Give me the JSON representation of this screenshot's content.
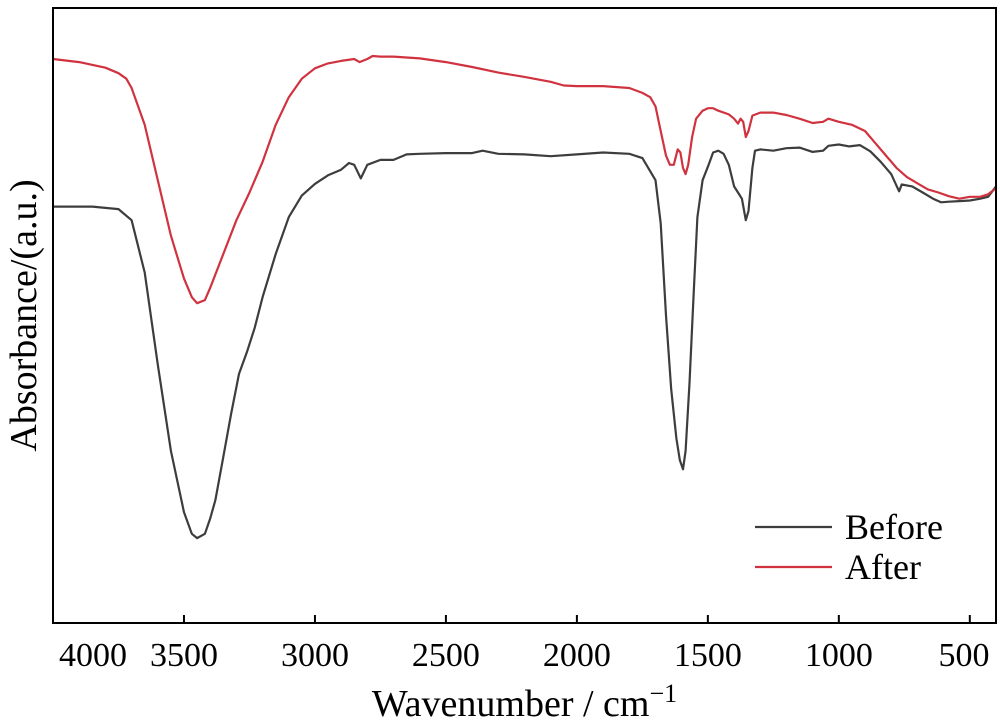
{
  "chart_data": {
    "type": "line",
    "title": "",
    "xlabel": "Wavenumber / cm",
    "xlabel_superscript": "−1",
    "ylabel": "Absorbance/(a.u.)",
    "xlim": [
      4000,
      400
    ],
    "x_reversed": true,
    "x_ticks": [
      4000,
      3500,
      3000,
      2500,
      2000,
      1500,
      1000,
      500
    ],
    "x_tick_labels": [
      "4000",
      "3500",
      "3000",
      "2500",
      "2000",
      "1500",
      "1000",
      "500"
    ],
    "ylim": [
      0,
      1
    ],
    "y_ticks_shown": false,
    "grid": false,
    "legend": {
      "placement": "bottom-right"
    },
    "series": [
      {
        "name": "Before",
        "color": "#3d3d3d",
        "points": [
          [
            4000,
            0.677
          ],
          [
            3850,
            0.677
          ],
          [
            3750,
            0.673
          ],
          [
            3700,
            0.655
          ],
          [
            3650,
            0.57
          ],
          [
            3600,
            0.42
          ],
          [
            3550,
            0.28
          ],
          [
            3500,
            0.18
          ],
          [
            3470,
            0.145
          ],
          [
            3450,
            0.138
          ],
          [
            3420,
            0.145
          ],
          [
            3400,
            0.17
          ],
          [
            3380,
            0.2
          ],
          [
            3350,
            0.27
          ],
          [
            3320,
            0.34
          ],
          [
            3290,
            0.405
          ],
          [
            3260,
            0.44
          ],
          [
            3230,
            0.48
          ],
          [
            3200,
            0.53
          ],
          [
            3150,
            0.6
          ],
          [
            3100,
            0.66
          ],
          [
            3050,
            0.695
          ],
          [
            3000,
            0.714
          ],
          [
            2950,
            0.728
          ],
          [
            2900,
            0.737
          ],
          [
            2870,
            0.748
          ],
          [
            2850,
            0.745
          ],
          [
            2825,
            0.723
          ],
          [
            2800,
            0.745
          ],
          [
            2750,
            0.753
          ],
          [
            2700,
            0.753
          ],
          [
            2650,
            0.762
          ],
          [
            2600,
            0.763
          ],
          [
            2500,
            0.764
          ],
          [
            2400,
            0.764
          ],
          [
            2360,
            0.768
          ],
          [
            2300,
            0.763
          ],
          [
            2200,
            0.762
          ],
          [
            2100,
            0.759
          ],
          [
            2000,
            0.762
          ],
          [
            1900,
            0.765
          ],
          [
            1800,
            0.763
          ],
          [
            1750,
            0.756
          ],
          [
            1700,
            0.72
          ],
          [
            1680,
            0.65
          ],
          [
            1660,
            0.5
          ],
          [
            1640,
            0.38
          ],
          [
            1620,
            0.3
          ],
          [
            1607,
            0.265
          ],
          [
            1595,
            0.25
          ],
          [
            1585,
            0.28
          ],
          [
            1570,
            0.39
          ],
          [
            1555,
            0.53
          ],
          [
            1540,
            0.66
          ],
          [
            1520,
            0.72
          ],
          [
            1500,
            0.742
          ],
          [
            1480,
            0.765
          ],
          [
            1460,
            0.768
          ],
          [
            1440,
            0.763
          ],
          [
            1420,
            0.745
          ],
          [
            1400,
            0.71
          ],
          [
            1385,
            0.7
          ],
          [
            1370,
            0.69
          ],
          [
            1355,
            0.655
          ],
          [
            1345,
            0.67
          ],
          [
            1330,
            0.74
          ],
          [
            1320,
            0.768
          ],
          [
            1300,
            0.77
          ],
          [
            1250,
            0.768
          ],
          [
            1200,
            0.772
          ],
          [
            1150,
            0.773
          ],
          [
            1100,
            0.766
          ],
          [
            1060,
            0.768
          ],
          [
            1040,
            0.776
          ],
          [
            1000,
            0.778
          ],
          [
            960,
            0.775
          ],
          [
            920,
            0.777
          ],
          [
            880,
            0.767
          ],
          [
            840,
            0.75
          ],
          [
            800,
            0.73
          ],
          [
            780,
            0.711
          ],
          [
            770,
            0.702
          ],
          [
            760,
            0.713
          ],
          [
            720,
            0.71
          ],
          [
            680,
            0.7
          ],
          [
            640,
            0.69
          ],
          [
            610,
            0.684
          ],
          [
            580,
            0.685
          ],
          [
            540,
            0.686
          ],
          [
            500,
            0.687
          ],
          [
            460,
            0.69
          ],
          [
            430,
            0.693
          ],
          [
            400,
            0.71
          ]
        ]
      },
      {
        "name": "After",
        "color": "#d0333f",
        "points": [
          [
            4000,
            0.917
          ],
          [
            3900,
            0.912
          ],
          [
            3800,
            0.903
          ],
          [
            3750,
            0.894
          ],
          [
            3720,
            0.885
          ],
          [
            3700,
            0.87
          ],
          [
            3650,
            0.81
          ],
          [
            3600,
            0.72
          ],
          [
            3550,
            0.63
          ],
          [
            3500,
            0.56
          ],
          [
            3470,
            0.53
          ],
          [
            3450,
            0.52
          ],
          [
            3420,
            0.525
          ],
          [
            3400,
            0.545
          ],
          [
            3350,
            0.6
          ],
          [
            3300,
            0.655
          ],
          [
            3250,
            0.7
          ],
          [
            3200,
            0.75
          ],
          [
            3150,
            0.81
          ],
          [
            3100,
            0.855
          ],
          [
            3050,
            0.885
          ],
          [
            3000,
            0.902
          ],
          [
            2950,
            0.91
          ],
          [
            2900,
            0.914
          ],
          [
            2850,
            0.917
          ],
          [
            2830,
            0.912
          ],
          [
            2800,
            0.917
          ],
          [
            2780,
            0.922
          ],
          [
            2750,
            0.921
          ],
          [
            2700,
            0.921
          ],
          [
            2600,
            0.918
          ],
          [
            2500,
            0.912
          ],
          [
            2400,
            0.904
          ],
          [
            2300,
            0.895
          ],
          [
            2200,
            0.888
          ],
          [
            2100,
            0.88
          ],
          [
            2050,
            0.874
          ],
          [
            2000,
            0.873
          ],
          [
            1900,
            0.873
          ],
          [
            1800,
            0.87
          ],
          [
            1750,
            0.862
          ],
          [
            1720,
            0.855
          ],
          [
            1700,
            0.84
          ],
          [
            1680,
            0.8
          ],
          [
            1660,
            0.76
          ],
          [
            1645,
            0.745
          ],
          [
            1630,
            0.745
          ],
          [
            1615,
            0.77
          ],
          [
            1605,
            0.765
          ],
          [
            1595,
            0.74
          ],
          [
            1585,
            0.73
          ],
          [
            1575,
            0.745
          ],
          [
            1560,
            0.79
          ],
          [
            1545,
            0.82
          ],
          [
            1520,
            0.833
          ],
          [
            1500,
            0.837
          ],
          [
            1480,
            0.837
          ],
          [
            1460,
            0.833
          ],
          [
            1420,
            0.827
          ],
          [
            1400,
            0.82
          ],
          [
            1385,
            0.812
          ],
          [
            1375,
            0.82
          ],
          [
            1365,
            0.815
          ],
          [
            1355,
            0.79
          ],
          [
            1345,
            0.8
          ],
          [
            1330,
            0.825
          ],
          [
            1300,
            0.83
          ],
          [
            1250,
            0.83
          ],
          [
            1200,
            0.826
          ],
          [
            1150,
            0.82
          ],
          [
            1100,
            0.813
          ],
          [
            1060,
            0.815
          ],
          [
            1040,
            0.82
          ],
          [
            1000,
            0.815
          ],
          [
            950,
            0.81
          ],
          [
            900,
            0.8
          ],
          [
            860,
            0.78
          ],
          [
            820,
            0.76
          ],
          [
            780,
            0.74
          ],
          [
            740,
            0.725
          ],
          [
            700,
            0.715
          ],
          [
            660,
            0.705
          ],
          [
            620,
            0.7
          ],
          [
            580,
            0.694
          ],
          [
            540,
            0.69
          ],
          [
            500,
            0.693
          ],
          [
            460,
            0.693
          ],
          [
            430,
            0.697
          ],
          [
            400,
            0.707
          ]
        ]
      }
    ]
  }
}
